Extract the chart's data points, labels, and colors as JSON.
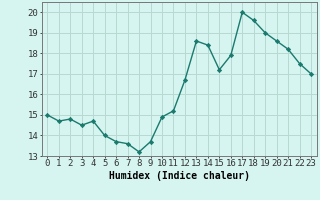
{
  "x": [
    0,
    1,
    2,
    3,
    4,
    5,
    6,
    7,
    8,
    9,
    10,
    11,
    12,
    13,
    14,
    15,
    16,
    17,
    18,
    19,
    20,
    21,
    22,
    23
  ],
  "y": [
    15.0,
    14.7,
    14.8,
    14.5,
    14.7,
    14.0,
    13.7,
    13.6,
    13.2,
    13.7,
    14.9,
    15.2,
    16.7,
    18.6,
    18.4,
    17.2,
    17.9,
    20.0,
    19.6,
    19.0,
    18.6,
    18.2,
    17.5,
    17.0
  ],
  "line_color": "#1a7a6e",
  "marker": "D",
  "marker_size": 2.2,
  "bg_color": "#d6f5f0",
  "grid_color": "#b8d8d2",
  "xlabel": "Humidex (Indice chaleur)",
  "xlim": [
    -0.5,
    23.5
  ],
  "ylim": [
    13,
    20.5
  ],
  "yticks": [
    13,
    14,
    15,
    16,
    17,
    18,
    19,
    20
  ],
  "xticks": [
    0,
    1,
    2,
    3,
    4,
    5,
    6,
    7,
    8,
    9,
    10,
    11,
    12,
    13,
    14,
    15,
    16,
    17,
    18,
    19,
    20,
    21,
    22,
    23
  ],
  "xlabel_fontsize": 7,
  "tick_fontsize": 6.5,
  "line_width": 1.0
}
